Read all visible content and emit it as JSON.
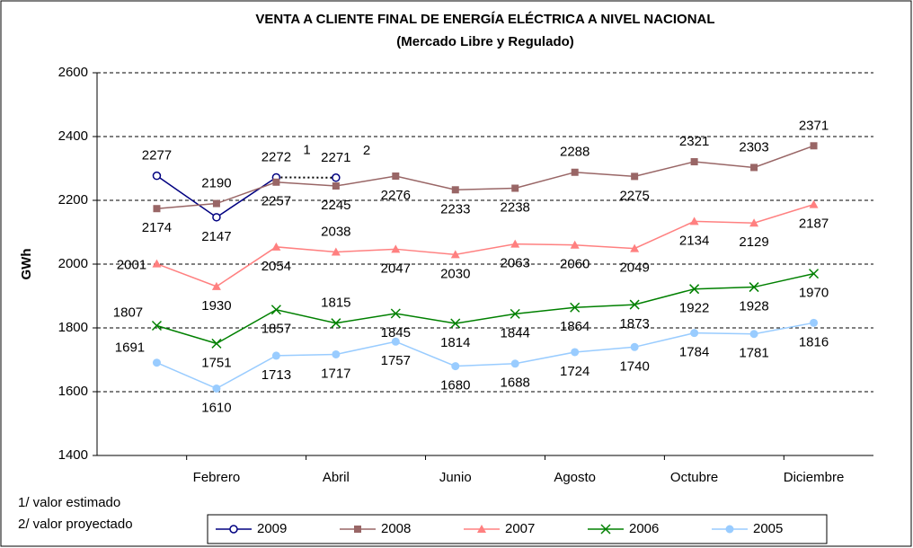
{
  "chart_data": {
    "type": "line",
    "title": "VENTA A CLIENTE FINAL DE ENERGÍA ELÉCTRICA A NIVEL NACIONAL",
    "subtitle": "(Mercado Libre y Regulado)",
    "y_label": "GWh",
    "categories": [
      null,
      "Febrero",
      null,
      "Abril",
      null,
      "Junio",
      null,
      "Agosto",
      null,
      "Octubre",
      null,
      "Diciembre"
    ],
    "ylim": [
      1400,
      2600
    ],
    "yticks": [
      1400,
      1600,
      1800,
      2000,
      2200,
      2400,
      2600
    ],
    "grid": true,
    "legend": "bottom",
    "series": [
      {
        "name": "2009",
        "color": "#000080",
        "marker": "circle-open",
        "dash_from": 2,
        "values": [
          2277,
          2147,
          2272,
          2271,
          null,
          null,
          null,
          null,
          null,
          null,
          null,
          null
        ]
      },
      {
        "name": "2008",
        "color": "#996666",
        "marker": "square",
        "values": [
          2174,
          2190,
          2257,
          2245,
          2276,
          2233,
          2238,
          2288,
          2275,
          2321,
          2303,
          2371
        ]
      },
      {
        "name": "2007",
        "color": "#ff8080",
        "marker": "triangle",
        "values": [
          2001,
          1930,
          2054,
          2038,
          2047,
          2030,
          2063,
          2060,
          2049,
          2134,
          2129,
          2187
        ]
      },
      {
        "name": "2006",
        "color": "#008000",
        "marker": "x",
        "values": [
          1807,
          1751,
          1857,
          1815,
          1845,
          1814,
          1844,
          1864,
          1873,
          1922,
          1928,
          1970
        ]
      },
      {
        "name": "2005",
        "color": "#99ccff",
        "marker": "circle",
        "values": [
          1691,
          1610,
          1713,
          1717,
          1757,
          1680,
          1688,
          1724,
          1740,
          1784,
          1781,
          1816
        ]
      }
    ],
    "annotations": [
      "1",
      "2"
    ],
    "footnotes": [
      "1/ valor estimado",
      "2/ valor proyectado"
    ]
  }
}
